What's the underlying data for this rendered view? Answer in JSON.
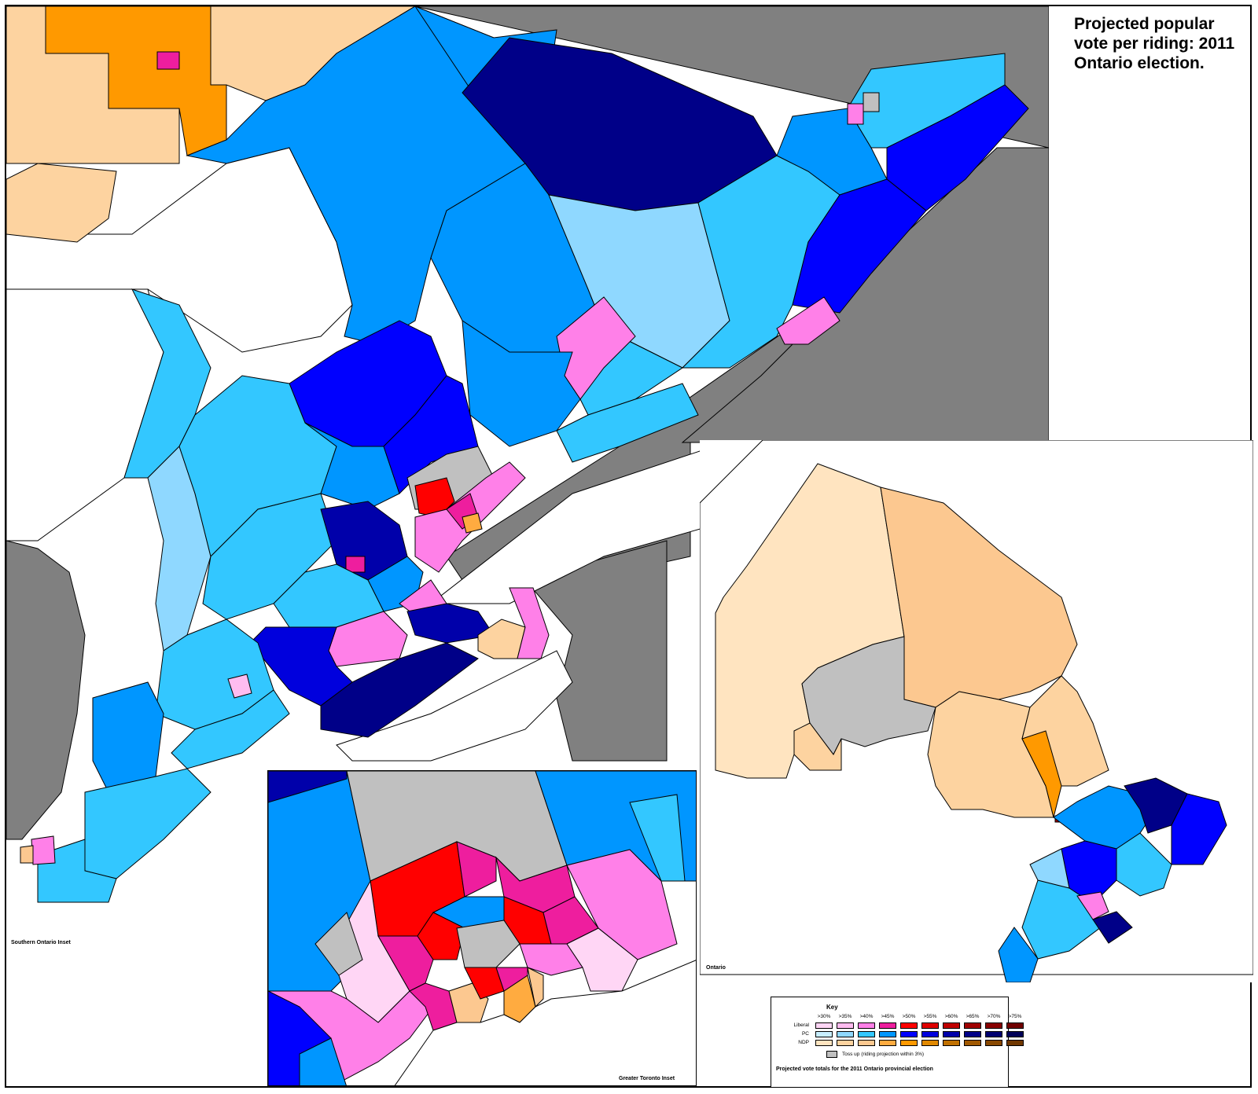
{
  "title": "Projected popular vote per riding: 2011 Ontario election.",
  "insets": {
    "southern": "Southern Ontario Inset",
    "toronto": "Greater Toronto Inset",
    "ontario": "Ontario"
  },
  "legend": {
    "title": "Key",
    "thresholds": [
      ">30%",
      ">35%",
      ">40%",
      ">45%",
      ">50%",
      ">55%",
      ">60%",
      ">65%",
      ">70%",
      ">75%"
    ],
    "parties": [
      {
        "name": "Liberal",
        "colors": [
          "#ffd6f5",
          "#ffbcf0",
          "#ff80e8",
          "#ee1e9e",
          "#ff0000",
          "#e00000",
          "#c00000",
          "#a00000",
          "#880000",
          "#700000"
        ]
      },
      {
        "name": "PC",
        "colors": [
          "#c8eeff",
          "#8fd8ff",
          "#33c7ff",
          "#0096ff",
          "#0000ff",
          "#0000dd",
          "#0000aa",
          "#000088",
          "#000070",
          "#000058"
        ]
      },
      {
        "name": "NDP",
        "colors": [
          "#ffe4c0",
          "#fdd3a0",
          "#fcc890",
          "#ffab40",
          "#ff9900",
          "#e08800",
          "#c07000",
          "#a05800",
          "#884800",
          "#703800"
        ]
      }
    ],
    "tossup_label": "Toss up (riding projection within 3%)",
    "tossup_color": "#c0c0c0",
    "footer": "Projected vote totals for the 2011 Ontario provincial election"
  },
  "palette": {
    "land_outside": "#808080",
    "water": "#ffffff",
    "border": "#000000"
  }
}
